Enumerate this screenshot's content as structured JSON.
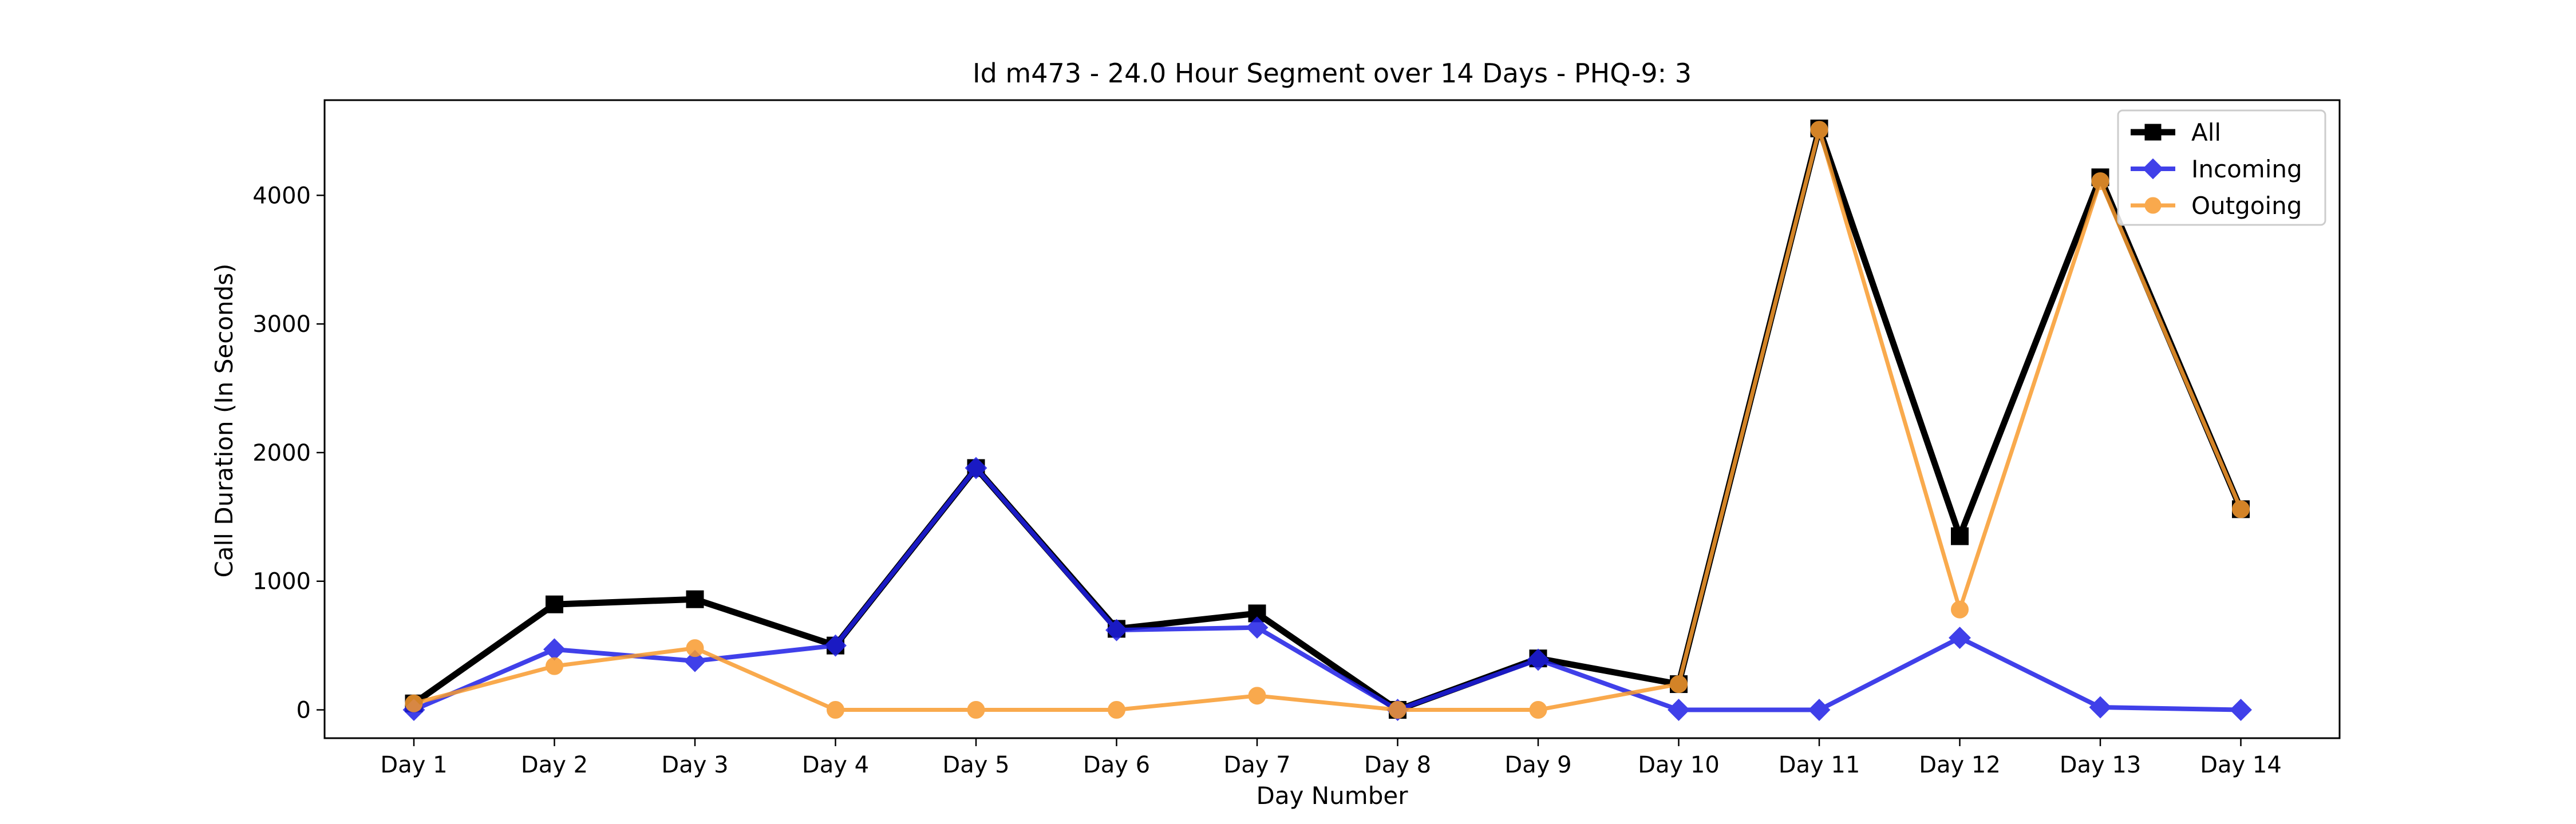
{
  "chart_data": {
    "type": "line",
    "title": "Id m473 - 24.0 Hour Segment over 14 Days - PHQ-9: 3",
    "xlabel": "Day Number",
    "ylabel": "Call Duration (In Seconds)",
    "categories": [
      "Day 1",
      "Day 2",
      "Day 3",
      "Day 4",
      "Day 5",
      "Day 6",
      "Day 7",
      "Day 8",
      "Day 9",
      "Day 10",
      "Day 11",
      "Day 12",
      "Day 13",
      "Day 14"
    ],
    "ylim": [
      -220,
      4740
    ],
    "yticks": [
      0,
      1000,
      2000,
      3000,
      4000
    ],
    "grid": false,
    "legend_position": "top-right",
    "series": [
      {
        "name": "All",
        "color": "#000000",
        "marker": "square",
        "values": [
          50,
          820,
          860,
          500,
          1880,
          630,
          750,
          0,
          400,
          200,
          4520,
          1350,
          4140,
          1560
        ]
      },
      {
        "name": "Incoming",
        "color": "#1f1fe6",
        "marker": "diamond",
        "values": [
          0,
          470,
          380,
          500,
          1880,
          620,
          640,
          0,
          390,
          0,
          0,
          560,
          20,
          0
        ]
      },
      {
        "name": "Outgoing",
        "color": "#f89b2e",
        "marker": "circle",
        "values": [
          50,
          340,
          480,
          0,
          0,
          0,
          110,
          0,
          0,
          200,
          4510,
          780,
          4110,
          1560
        ]
      }
    ]
  }
}
